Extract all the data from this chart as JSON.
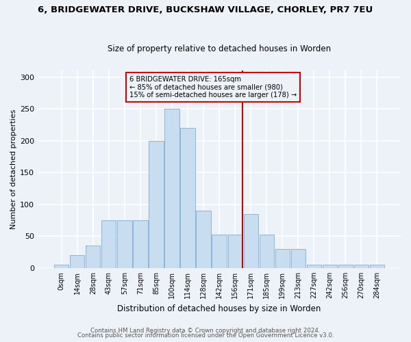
{
  "title": "6, BRIDGEWATER DRIVE, BUCKSHAW VILLAGE, CHORLEY, PR7 7EU",
  "subtitle": "Size of property relative to detached houses in Worden",
  "xlabel": "Distribution of detached houses by size in Worden",
  "ylabel": "Number of detached properties",
  "bar_labels": [
    "0sqm",
    "14sqm",
    "28sqm",
    "43sqm",
    "57sqm",
    "71sqm",
    "85sqm",
    "100sqm",
    "114sqm",
    "128sqm",
    "142sqm",
    "156sqm",
    "171sqm",
    "185sqm",
    "199sqm",
    "213sqm",
    "227sqm",
    "242sqm",
    "256sqm",
    "270sqm",
    "284sqm"
  ],
  "bar_heights": [
    5,
    20,
    35,
    75,
    75,
    75,
    200,
    250,
    220,
    90,
    52,
    52,
    85,
    52,
    30,
    30,
    5,
    5,
    5,
    5,
    5
  ],
  "bar_color": "#c9ddf0",
  "bar_edgecolor": "#89b4d9",
  "vline_color": "#cc0000",
  "annotation_box_edgecolor": "#cc0000",
  "annotation_title": "6 BRIDGEWATER DRIVE: 165sqm",
  "annotation_line1": "← 85% of detached houses are smaller (980)",
  "annotation_line2": "15% of semi-detached houses are larger (178) →",
  "background_color": "#edf2f9",
  "grid_color": "#ffffff",
  "footnote1": "Contains HM Land Registry data © Crown copyright and database right 2024.",
  "footnote2": "Contains public sector information licensed under the Open Government Licence v3.0.",
  "ylim": [
    0,
    310
  ],
  "yticks": [
    0,
    50,
    100,
    150,
    200,
    250,
    300
  ]
}
